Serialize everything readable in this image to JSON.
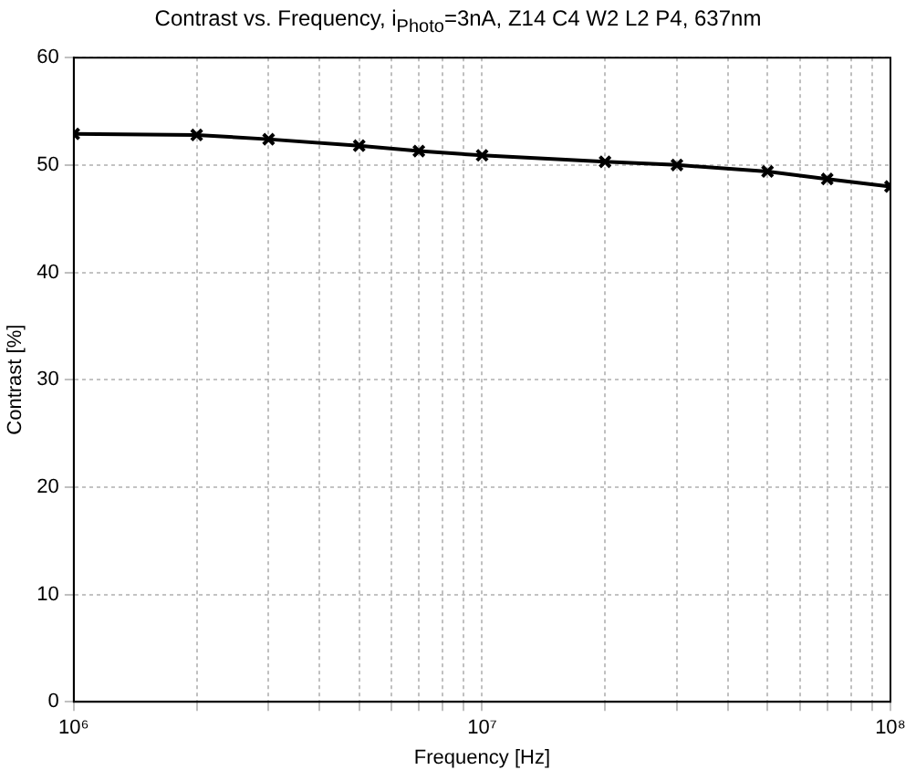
{
  "chart_data": {
    "type": "line",
    "title": "Contrast vs. Frequency, i$_{Photo}$=3nA, Z14 C4 W2 L2 P4, 637nm",
    "xlabel": "Frequency [Hz]",
    "ylabel": "Contrast [%]",
    "x": [
      1000000,
      2000000,
      3000000,
      5000000,
      7000000,
      10000000,
      20000000,
      30000000,
      50000000,
      70000000,
      100000000
    ],
    "series": [
      {
        "color": "#000000",
        "values": [
          52.9,
          52.8,
          52.4,
          51.8,
          51.3,
          50.9,
          50.3,
          50.0,
          49.4,
          48.7,
          48.0
        ]
      }
    ],
    "log": "x",
    "xlim": [
      1000000,
      100000000
    ],
    "ylim": [
      0,
      60
    ],
    "xticks": [
      {
        "value": 1000000,
        "label": "10⁶"
      },
      {
        "value": 2000000,
        "label": null
      },
      {
        "value": 3000000,
        "label": null
      },
      {
        "value": 4000000,
        "label": null
      },
      {
        "value": 5000000,
        "label": null
      },
      {
        "value": 6000000,
        "label": null
      },
      {
        "value": 7000000,
        "label": null
      },
      {
        "value": 8000000,
        "label": null
      },
      {
        "value": 9000000,
        "label": null
      },
      {
        "value": 10000000,
        "label": "10⁷"
      },
      {
        "value": 20000000,
        "label": null
      },
      {
        "value": 30000000,
        "label": null
      },
      {
        "value": 40000000,
        "label": null
      },
      {
        "value": 50000000,
        "label": null
      },
      {
        "value": 60000000,
        "label": null
      },
      {
        "value": 70000000,
        "label": null
      },
      {
        "value": 80000000,
        "label": null
      },
      {
        "value": 90000000,
        "label": null
      },
      {
        "value": 100000000,
        "label": "10⁸"
      }
    ],
    "yticks": [
      0,
      10,
      20,
      30,
      40,
      50,
      60
    ],
    "grid": true,
    "marker": "cross",
    "line_style": "solid",
    "legend": false
  }
}
